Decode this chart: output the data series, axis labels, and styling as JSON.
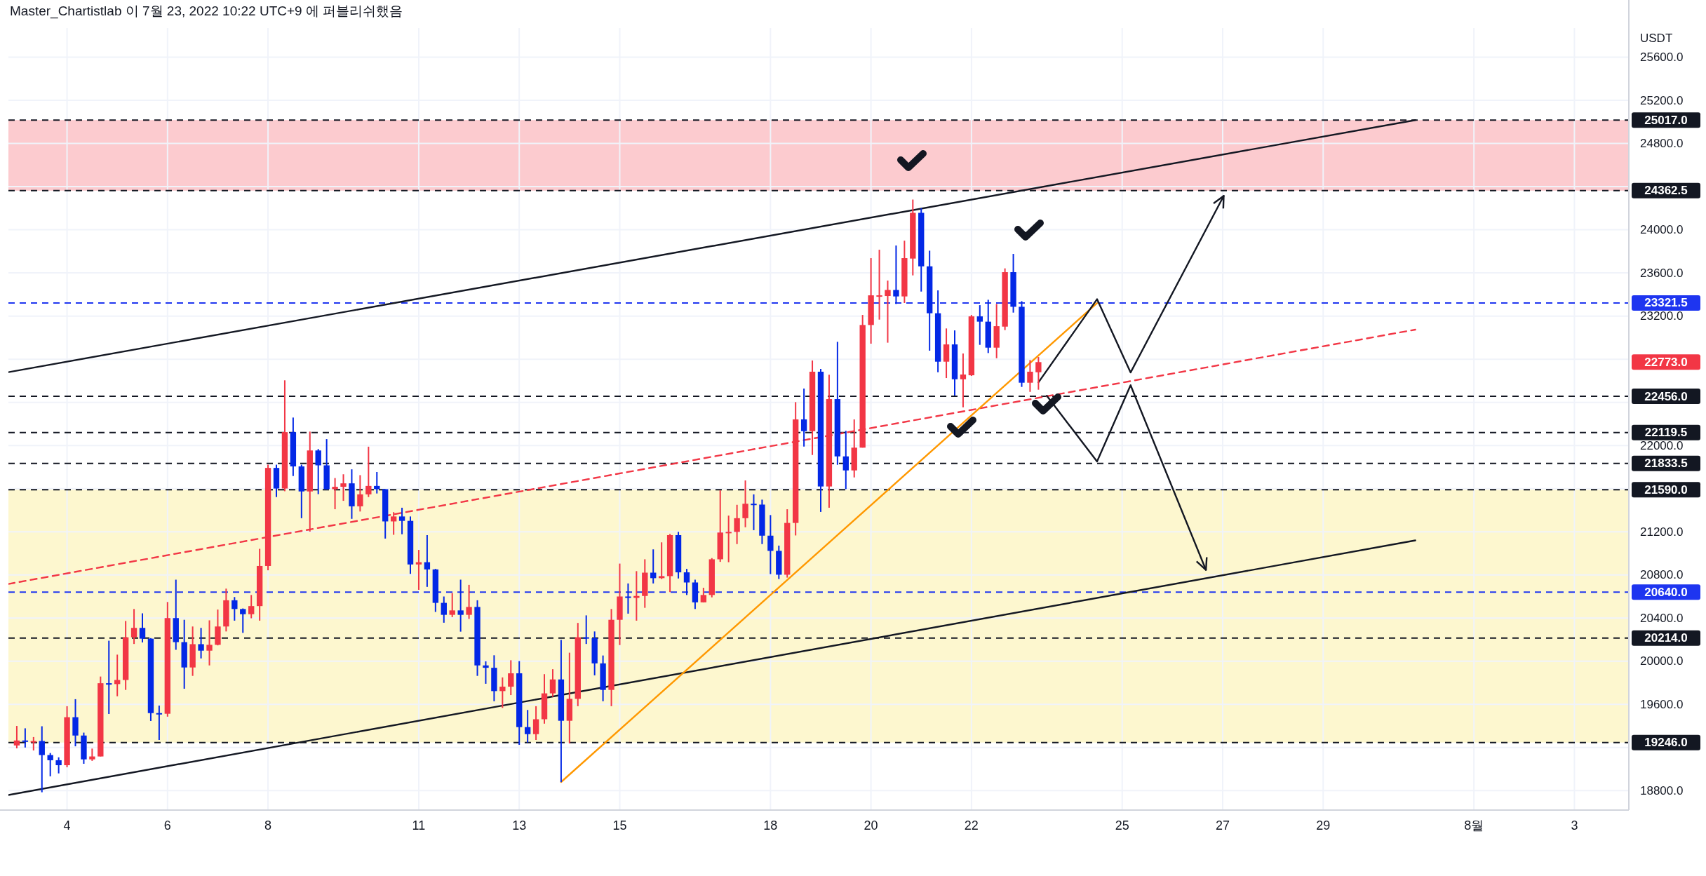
{
  "chart_data": {
    "type": "candlestick",
    "title": "Master_Chartistlab 이 7월 23, 2022 10:22 UTC+9 에 퍼블리쉬했음",
    "ylabel": "USDT",
    "x": [
      "2022-07-03T00:00",
      "2022-07-03T04:00",
      "2022-07-03T08:00",
      "2022-07-03T12:00",
      "2022-07-03T16:00",
      "2022-07-03T20:00",
      "2022-07-04T00:00",
      "2022-07-04T04:00",
      "2022-07-04T08:00",
      "2022-07-04T12:00",
      "2022-07-04T16:00",
      "2022-07-04T20:00",
      "2022-07-05T00:00",
      "2022-07-05T04:00",
      "2022-07-05T08:00",
      "2022-07-05T12:00",
      "2022-07-05T16:00",
      "2022-07-05T20:00",
      "2022-07-06T00:00",
      "2022-07-06T04:00",
      "2022-07-06T08:00",
      "2022-07-06T12:00",
      "2022-07-06T16:00",
      "2022-07-06T20:00",
      "2022-07-07T00:00",
      "2022-07-07T04:00",
      "2022-07-07T08:00",
      "2022-07-07T12:00",
      "2022-07-07T16:00",
      "2022-07-07T20:00",
      "2022-07-08T00:00",
      "2022-07-08T04:00",
      "2022-07-08T08:00",
      "2022-07-08T12:00",
      "2022-07-08T16:00",
      "2022-07-08T20:00",
      "2022-07-09T00:00",
      "2022-07-09T04:00",
      "2022-07-09T08:00",
      "2022-07-09T12:00",
      "2022-07-09T16:00",
      "2022-07-09T20:00",
      "2022-07-10T00:00",
      "2022-07-10T04:00",
      "2022-07-10T08:00",
      "2022-07-10T12:00",
      "2022-07-10T16:00",
      "2022-07-10T20:00",
      "2022-07-11T00:00",
      "2022-07-11T04:00",
      "2022-07-11T08:00",
      "2022-07-11T12:00",
      "2022-07-11T16:00",
      "2022-07-11T20:00",
      "2022-07-12T00:00",
      "2022-07-12T04:00",
      "2022-07-12T08:00",
      "2022-07-12T12:00",
      "2022-07-12T16:00",
      "2022-07-12T20:00",
      "2022-07-13T00:00",
      "2022-07-13T04:00",
      "2022-07-13T08:00",
      "2022-07-13T12:00",
      "2022-07-13T16:00",
      "2022-07-13T20:00",
      "2022-07-14T00:00",
      "2022-07-14T04:00",
      "2022-07-14T08:00",
      "2022-07-14T12:00",
      "2022-07-14T16:00",
      "2022-07-14T20:00",
      "2022-07-15T00:00",
      "2022-07-15T04:00",
      "2022-07-15T08:00",
      "2022-07-15T12:00",
      "2022-07-15T16:00",
      "2022-07-15T20:00",
      "2022-07-16T00:00",
      "2022-07-16T04:00",
      "2022-07-16T08:00",
      "2022-07-16T12:00",
      "2022-07-16T16:00",
      "2022-07-16T20:00",
      "2022-07-17T00:00",
      "2022-07-17T04:00",
      "2022-07-17T08:00",
      "2022-07-17T12:00",
      "2022-07-17T16:00",
      "2022-07-17T20:00",
      "2022-07-18T00:00",
      "2022-07-18T04:00",
      "2022-07-18T08:00",
      "2022-07-18T12:00",
      "2022-07-18T16:00",
      "2022-07-18T20:00",
      "2022-07-19T00:00",
      "2022-07-19T04:00",
      "2022-07-19T08:00",
      "2022-07-19T12:00",
      "2022-07-19T16:00",
      "2022-07-19T20:00",
      "2022-07-20T00:00",
      "2022-07-20T04:00",
      "2022-07-20T08:00",
      "2022-07-20T12:00",
      "2022-07-20T16:00",
      "2022-07-20T20:00",
      "2022-07-21T00:00",
      "2022-07-21T04:00",
      "2022-07-21T08:00",
      "2022-07-21T12:00",
      "2022-07-21T16:00",
      "2022-07-21T20:00",
      "2022-07-22T00:00",
      "2022-07-22T04:00",
      "2022-07-22T08:00",
      "2022-07-22T12:00",
      "2022-07-22T16:00",
      "2022-07-22T20:00",
      "2022-07-23T00:00",
      "2022-07-23T04:00",
      "2022-07-23T08:00"
    ],
    "ohlc": [
      [
        19219,
        19400,
        19192,
        19265
      ],
      [
        19265,
        19378,
        19200,
        19254
      ],
      [
        19254,
        19297,
        19173,
        19260
      ],
      [
        19260,
        19397,
        18785,
        19130
      ],
      [
        19130,
        19149,
        18933,
        19082
      ],
      [
        19082,
        19109,
        18960,
        19036
      ],
      [
        19036,
        19583,
        19017,
        19481
      ],
      [
        19481,
        19648,
        19211,
        19311
      ],
      [
        19311,
        19338,
        19049,
        19090
      ],
      [
        19090,
        19190,
        19076,
        19117
      ],
      [
        19117,
        19858,
        19117,
        19796
      ],
      [
        19796,
        20190,
        19511,
        19788
      ],
      [
        19788,
        20061,
        19675,
        19826
      ],
      [
        19826,
        20373,
        19734,
        20222
      ],
      [
        20222,
        20484,
        20160,
        20309
      ],
      [
        20309,
        20444,
        20174,
        20209
      ],
      [
        20209,
        20214,
        19446,
        19519
      ],
      [
        19519,
        19589,
        19270,
        19513
      ],
      [
        19513,
        20549,
        19486,
        20400
      ],
      [
        20400,
        20756,
        20106,
        20177
      ],
      [
        20177,
        20384,
        19745,
        19942
      ],
      [
        19942,
        20322,
        19864,
        20158
      ],
      [
        20158,
        20309,
        20026,
        20098
      ],
      [
        20098,
        20379,
        19961,
        20152
      ],
      [
        20152,
        20479,
        20147,
        20322
      ],
      [
        20322,
        20673,
        20276,
        20565
      ],
      [
        20565,
        20595,
        20376,
        20484
      ],
      [
        20484,
        20489,
        20263,
        20436
      ],
      [
        20436,
        20614,
        20398,
        20511
      ],
      [
        20511,
        21042,
        20376,
        20883
      ],
      [
        20883,
        21822,
        20843,
        21792
      ],
      [
        21792,
        21822,
        21522,
        21601
      ],
      [
        21601,
        22604,
        21576,
        22124
      ],
      [
        22124,
        22259,
        21717,
        21806
      ],
      [
        21806,
        21822,
        21326,
        21574
      ],
      [
        21574,
        22129,
        21202,
        21954
      ],
      [
        21954,
        21967,
        21549,
        21816
      ],
      [
        21816,
        22059,
        21590,
        21595
      ],
      [
        21595,
        21698,
        21409,
        21617
      ],
      [
        21617,
        21733,
        21487,
        21649
      ],
      [
        21649,
        21779,
        21320,
        21436
      ],
      [
        21436,
        21725,
        21388,
        21547
      ],
      [
        21547,
        21989,
        21522,
        21625
      ],
      [
        21625,
        21754,
        21555,
        21595
      ],
      [
        21595,
        21595,
        21137,
        21296
      ],
      [
        21296,
        21382,
        21172,
        21342
      ],
      [
        21342,
        21423,
        21177,
        21301
      ],
      [
        21301,
        21342,
        20810,
        20897
      ],
      [
        20897,
        21032,
        20662,
        20918
      ],
      [
        20918,
        21169,
        20689,
        20851
      ],
      [
        20851,
        20856,
        20457,
        20541
      ],
      [
        20541,
        20600,
        20357,
        20430
      ],
      [
        20430,
        20632,
        20409,
        20471
      ],
      [
        20471,
        20756,
        20274,
        20430
      ],
      [
        20430,
        20708,
        20392,
        20503
      ],
      [
        20503,
        20565,
        19864,
        19961
      ],
      [
        19961,
        19999,
        19791,
        19939
      ],
      [
        19939,
        20055,
        19629,
        19723
      ],
      [
        19723,
        19850,
        19567,
        19764
      ],
      [
        19764,
        20009,
        19686,
        19888
      ],
      [
        19888,
        20001,
        19225,
        19389
      ],
      [
        19389,
        19548,
        19246,
        19324
      ],
      [
        19324,
        19583,
        19270,
        19462
      ],
      [
        19462,
        19880,
        19421,
        19702
      ],
      [
        19702,
        19926,
        19670,
        19831
      ],
      [
        19831,
        20198,
        18879,
        19448
      ],
      [
        19448,
        20079,
        19238,
        19651
      ],
      [
        19651,
        20355,
        19583,
        20222
      ],
      [
        20222,
        20425,
        20160,
        20214
      ],
      [
        20214,
        20276,
        19869,
        19980
      ],
      [
        19980,
        20053,
        19629,
        19734
      ],
      [
        19734,
        20484,
        19583,
        20384
      ],
      [
        20384,
        20905,
        20150,
        20600
      ],
      [
        20600,
        20721,
        20441,
        20587
      ],
      [
        20587,
        20835,
        20376,
        20605
      ],
      [
        20605,
        20945,
        20495,
        20821
      ],
      [
        20821,
        21037,
        20721,
        20770
      ],
      [
        20770,
        21102,
        20762,
        20789
      ],
      [
        20789,
        21180,
        20641,
        21169
      ],
      [
        21169,
        21199,
        20767,
        20824
      ],
      [
        20824,
        20856,
        20614,
        20730
      ],
      [
        20730,
        20756,
        20484,
        20546
      ],
      [
        20546,
        20681,
        20546,
        20614
      ],
      [
        20614,
        20956,
        20592,
        20945
      ],
      [
        20945,
        21584,
        20921,
        21193
      ],
      [
        21193,
        21350,
        20918,
        21199
      ],
      [
        21199,
        21450,
        21086,
        21326
      ],
      [
        21326,
        21676,
        21242,
        21460
      ],
      [
        21460,
        21547,
        21215,
        21452
      ],
      [
        21452,
        21498,
        21086,
        21164
      ],
      [
        21164,
        21355,
        20808,
        21023
      ],
      [
        21023,
        21072,
        20762,
        20802
      ],
      [
        20802,
        21409,
        20775,
        21282
      ],
      [
        21282,
        22402,
        21166,
        22242
      ],
      [
        22242,
        22528,
        21990,
        22133
      ],
      [
        22133,
        22788,
        21912,
        22684
      ],
      [
        22684,
        22710,
        21384,
        21620
      ],
      [
        21620,
        22656,
        21423,
        22430
      ],
      [
        22430,
        22961,
        21821,
        21899
      ],
      [
        21899,
        22136,
        21596,
        21769
      ],
      [
        21769,
        22242,
        21704,
        21980
      ],
      [
        21980,
        23210,
        21980,
        23117
      ],
      [
        23117,
        23737,
        22944,
        23392
      ],
      [
        23386,
        23815,
        23167,
        23392
      ],
      [
        23386,
        23529,
        22953,
        23442
      ],
      [
        23442,
        23854,
        23312,
        23382
      ],
      [
        23382,
        23899,
        23321,
        23737
      ],
      [
        23733,
        24280,
        23577,
        24157
      ],
      [
        24157,
        24200,
        23427,
        23661
      ],
      [
        23661,
        23806,
        22879,
        23226
      ],
      [
        23226,
        23438,
        22679,
        22777
      ],
      [
        22777,
        23085,
        22625,
        22937
      ],
      [
        22937,
        23067,
        22463,
        22614
      ],
      [
        22614,
        22853,
        22354,
        22658
      ],
      [
        22651,
        23210,
        22645,
        23197
      ],
      [
        23197,
        23301,
        22933,
        23148
      ],
      [
        23148,
        23351,
        22857,
        22907
      ],
      [
        22907,
        23312,
        22809,
        23106
      ],
      [
        23102,
        23642,
        23070,
        23607
      ],
      [
        23607,
        23776,
        23232,
        23286
      ],
      [
        23286,
        23338,
        22543,
        22582
      ],
      [
        22582,
        22792,
        22497,
        22684
      ],
      [
        22679,
        22820,
        22517,
        22773
      ]
    ],
    "colors": [
      "#f23645",
      "#0328e6",
      "#f23645",
      "#0328e6",
      "#0328e6",
      "#0328e6",
      "#f23645",
      "#0328e6",
      "#0328e6",
      "#f23645",
      "#f23645",
      "#0328e6",
      "#f23645",
      "#f23645",
      "#f23645",
      "#0328e6",
      "#0328e6",
      "#0328e6",
      "#f23645",
      "#0328e6",
      "#0328e6",
      "#f23645",
      "#0328e6",
      "#f23645",
      "#f23645",
      "#f23645",
      "#0328e6",
      "#0328e6",
      "#f23645",
      "#f23645",
      "#f23645",
      "#0328e6",
      "#f23645",
      "#0328e6",
      "#0328e6",
      "#f23645",
      "#0328e6",
      "#0328e6",
      "#f23645",
      "#f23645",
      "#0328e6",
      "#f23645",
      "#f23645",
      "#0328e6",
      "#0328e6",
      "#f23645",
      "#0328e6",
      "#0328e6",
      "#f23645",
      "#0328e6",
      "#0328e6",
      "#0328e6",
      "#f23645",
      "#0328e6",
      "#f23645",
      "#0328e6",
      "#0328e6",
      "#0328e6",
      "#f23645",
      "#f23645",
      "#0328e6",
      "#0328e6",
      "#f23645",
      "#f23645",
      "#f23645",
      "#0328e6",
      "#f23645",
      "#f23645",
      "#0328e6",
      "#0328e6",
      "#0328e6",
      "#f23645",
      "#f23645",
      "#0328e6",
      "#f23645",
      "#f23645",
      "#0328e6",
      "#f23645",
      "#f23645",
      "#0328e6",
      "#0328e6",
      "#0328e6",
      "#f23645",
      "#f23645",
      "#f23645",
      "#f23645",
      "#f23645",
      "#f23645",
      "#0328e6",
      "#0328e6",
      "#0328e6",
      "#0328e6",
      "#f23645",
      "#f23645",
      "#0328e6",
      "#f23645",
      "#0328e6",
      "#f23645",
      "#0328e6",
      "#0328e6",
      "#f23645",
      "#f23645",
      "#f23645",
      "#f23645",
      "#f23645",
      "#0328e6",
      "#f23645",
      "#f23645",
      "#0328e6",
      "#0328e6",
      "#0328e6",
      "#f23645",
      "#0328e6",
      "#f23645",
      "#f23645",
      "#0328e6",
      "#0328e6",
      "#f23645",
      "#f23645",
      "#0328e6",
      "#0328e6",
      "#f23645",
      "#f23645"
    ],
    "series": [
      {
        "type": "line",
        "color": "#131722",
        "line_style": "solid",
        "x": [
          "2022-07-02T20:00",
          "2022-07-30T20:00"
        ],
        "values": [
          22680,
          25017
        ]
      },
      {
        "type": "line",
        "color": "#131722",
        "line_style": "solid",
        "x": [
          "2022-07-02T20:00",
          "2022-07-30T20:00"
        ],
        "values": [
          18760,
          21120
        ]
      },
      {
        "type": "line",
        "color": "#f23645",
        "line_style": "dashed",
        "x": [
          "2022-07-02T20:00",
          "2022-07-30T20:00"
        ],
        "values": [
          20716,
          23074
        ]
      },
      {
        "type": "line",
        "color": "#ff9800",
        "line_style": "solid",
        "x": [
          "2022-07-13T20:00",
          "2022-07-24T12:00"
        ],
        "values": [
          18880,
          23320
        ]
      },
      {
        "type": "line",
        "color": "#131722",
        "line_style": "solid",
        "x": [
          "2022-07-23T08:00",
          "2022-07-24T12:00",
          "2022-07-25T04:00",
          "2022-07-27T00:30"
        ],
        "values": [
          22586,
          23356,
          22677,
          24314
        ]
      },
      {
        "type": "line",
        "color": "#131722",
        "line_style": "solid",
        "x": [
          "2022-07-23T12:00",
          "2022-07-24T12:00",
          "2022-07-25T04:00",
          "2022-07-26T16:00"
        ],
        "values": [
          22461,
          21851,
          22559,
          20847
        ]
      }
    ],
    "xlim": [
      "2022-07-02T20:00",
      "2022-08-04T02:00"
    ],
    "xticks": [
      {
        "value": "2022-07-04",
        "label": "4"
      },
      {
        "value": "2022-07-06",
        "label": "6"
      },
      {
        "value": "2022-07-08",
        "label": "8"
      },
      {
        "value": "2022-07-11",
        "label": "11"
      },
      {
        "value": "2022-07-13",
        "label": "13"
      },
      {
        "value": "2022-07-15",
        "label": "15"
      },
      {
        "value": "2022-07-18",
        "label": "18"
      },
      {
        "value": "2022-07-20",
        "label": "20"
      },
      {
        "value": "2022-07-22",
        "label": "22"
      },
      {
        "value": "2022-07-25",
        "label": "25"
      },
      {
        "value": "2022-07-27",
        "label": "27"
      },
      {
        "value": "2022-07-29",
        "label": "29"
      },
      {
        "value": "2022-08-01",
        "label": "8월"
      },
      {
        "value": "2022-08-03",
        "label": "3"
      }
    ],
    "ylim": [
      18620,
      25870
    ],
    "yticks": [
      {
        "value": 18800,
        "label": "18800.0"
      },
      {
        "value": 19200,
        "label": null
      },
      {
        "value": 19600,
        "label": "19600.0"
      },
      {
        "value": 20000,
        "label": "20000.0"
      },
      {
        "value": 20400,
        "label": "20400.0"
      },
      {
        "value": 20800,
        "label": "20800.0"
      },
      {
        "value": 21200,
        "label": "21200.0"
      },
      {
        "value": 21600,
        "label": null
      },
      {
        "value": 22000,
        "label": "22000.0"
      },
      {
        "value": 22400,
        "label": null
      },
      {
        "value": 22800,
        "label": null
      },
      {
        "value": 23200,
        "label": "23200.0"
      },
      {
        "value": 23600,
        "label": "23600.0"
      },
      {
        "value": 24000,
        "label": "24000.0"
      },
      {
        "value": 24400,
        "label": null
      },
      {
        "value": 24800,
        "label": "24800.0"
      },
      {
        "value": 25200,
        "label": "25200.0"
      },
      {
        "value": 25600,
        "label": "25600.0"
      }
    ],
    "grid": true,
    "bands": [
      {
        "axis": "y",
        "from": 24362.5,
        "to": 25017,
        "color": "#fccbcf"
      },
      {
        "axis": "y",
        "from": 19246,
        "to": 21590,
        "color": "#fdf7cf"
      }
    ],
    "ref_lines": [
      {
        "axis": "y",
        "value": 25017,
        "label": "25017.0",
        "color": "#131722",
        "line_style": "dashed"
      },
      {
        "axis": "y",
        "value": 24362.5,
        "label": "24362.5",
        "color": "#131722",
        "line_style": "dashed"
      },
      {
        "axis": "y",
        "value": 23321.5,
        "label": "23321.5",
        "color": "#1e35f0",
        "line_style": "dashed"
      },
      {
        "axis": "y",
        "value": 22456,
        "label": "22456.0",
        "color": "#131722",
        "line_style": "dashed"
      },
      {
        "axis": "y",
        "value": 22119.5,
        "label": "22119.5",
        "color": "#131722",
        "line_style": "dashed"
      },
      {
        "axis": "y",
        "value": 21833.5,
        "label": "21833.5",
        "color": "#131722",
        "line_style": "dashed"
      },
      {
        "axis": "y",
        "value": 21590,
        "label": "21590.0",
        "color": "#131722",
        "line_style": "dashed"
      },
      {
        "axis": "y",
        "value": 20640,
        "label": "20640.0",
        "color": "#1e35f0",
        "line_style": "dashed"
      },
      {
        "axis": "y",
        "value": 20214,
        "label": "20214.0",
        "color": "#131722",
        "line_style": "dashed"
      },
      {
        "axis": "y",
        "value": 19246,
        "label": "19246.0",
        "color": "#131722",
        "line_style": "dashed"
      }
    ],
    "annotations": [
      "22773.0"
    ]
  }
}
